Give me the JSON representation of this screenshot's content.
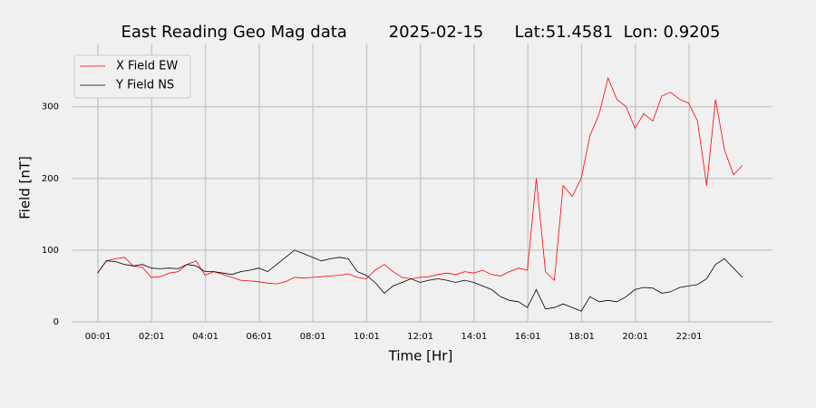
{
  "chart_data": {
    "type": "line",
    "title": "East Reading Geo Mag data        2025-02-15      Lat:51.4581  Lon: 0.9205",
    "xlabel": "Time  [Hr]",
    "ylabel": "Field  [nT]",
    "x": [
      0,
      0.33,
      0.67,
      1,
      1.33,
      1.67,
      2,
      2.33,
      2.67,
      3,
      3.33,
      3.67,
      4,
      4.33,
      4.67,
      5,
      5.33,
      5.67,
      6,
      6.33,
      6.67,
      7,
      7.33,
      7.67,
      8,
      8.33,
      8.67,
      9,
      9.33,
      9.67,
      10,
      10.33,
      10.67,
      11,
      11.33,
      11.67,
      12,
      12.33,
      12.67,
      13,
      13.33,
      13.67,
      14,
      14.33,
      14.67,
      15,
      15.33,
      15.67,
      16,
      16.33,
      16.67,
      17,
      17.33,
      17.67,
      18,
      18.33,
      18.67,
      19,
      19.33,
      19.67,
      20,
      20.33,
      20.67,
      21,
      21.33,
      21.67,
      22,
      22.33,
      22.67,
      23,
      23.33,
      23.67,
      24
    ],
    "series": [
      {
        "name": "X Field EW",
        "color": "#ff0000",
        "values": [
          68,
          85,
          88,
          90,
          78,
          76,
          62,
          63,
          68,
          70,
          80,
          85,
          65,
          70,
          66,
          62,
          58,
          57,
          56,
          54,
          53,
          56,
          62,
          61,
          62,
          63,
          64,
          65,
          67,
          62,
          60,
          72,
          80,
          70,
          62,
          60,
          62,
          63,
          66,
          68,
          66,
          70,
          68,
          72,
          66,
          64,
          70,
          75,
          72,
          200,
          70,
          58,
          190,
          175,
          200,
          260,
          290,
          340,
          310,
          300,
          270,
          290,
          280,
          315,
          320,
          310,
          305,
          280,
          190,
          310,
          240,
          205,
          218
        ]
      },
      {
        "name": "Y Field NS",
        "color": "#000000",
        "values": [
          68,
          85,
          84,
          80,
          78,
          80,
          75,
          74,
          75,
          74,
          80,
          78,
          70,
          70,
          68,
          66,
          70,
          72,
          75,
          70,
          80,
          90,
          100,
          95,
          90,
          85,
          88,
          90,
          88,
          70,
          65,
          55,
          40,
          50,
          55,
          60,
          55,
          58,
          60,
          58,
          55,
          58,
          55,
          50,
          45,
          35,
          30,
          28,
          20,
          45,
          18,
          20,
          25,
          20,
          15,
          35,
          28,
          30,
          28,
          35,
          45,
          48,
          47,
          40,
          42,
          48,
          50,
          52,
          60,
          80,
          88,
          75,
          62
        ]
      }
    ],
    "xlim": [
      -0.93,
      25.12
    ],
    "xticks": [
      {
        "value": 0.0167,
        "label": "00:01"
      },
      {
        "value": 2.0167,
        "label": "02:01"
      },
      {
        "value": 4.0167,
        "label": "04:01"
      },
      {
        "value": 6.0167,
        "label": "06:01"
      },
      {
        "value": 8.0167,
        "label": "08:01"
      },
      {
        "value": 10.0167,
        "label": "10:01"
      },
      {
        "value": 12.0167,
        "label": "12:01"
      },
      {
        "value": 14.0167,
        "label": "14:01"
      },
      {
        "value": 16.0167,
        "label": "16:01"
      },
      {
        "value": 18.0167,
        "label": "18:01"
      },
      {
        "value": 20.0167,
        "label": "20:01"
      },
      {
        "value": 22.0167,
        "label": "22:01"
      }
    ],
    "ylim": [
      0,
      388
    ],
    "yticks": [
      0,
      100,
      200,
      300
    ],
    "grid": true,
    "legend": "upper left"
  }
}
